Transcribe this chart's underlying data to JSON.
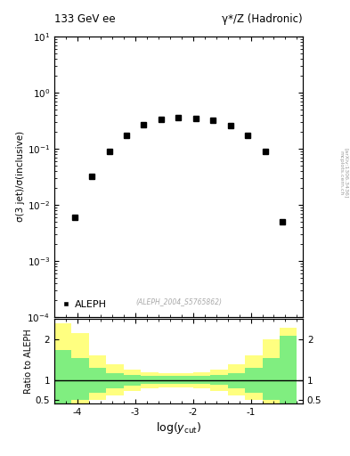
{
  "title_left": "133 GeV ee",
  "title_right": "γ*/Z (Hadronic)",
  "ylabel_main": "σ(3 jet)/σ(inclusive)",
  "ylabel_ratio": "Ratio to ALEPH",
  "xlabel": "log(y_{cut})",
  "watermark": "(ALEPH_2004_S5765862)",
  "arxiv_line1": "mcplots.cern.ch",
  "arxiv_line2": "[arXiv:1306.3436]",
  "legend_label": "ALEPH",
  "data_x": [
    -4.05,
    -3.75,
    -3.45,
    -3.15,
    -2.85,
    -2.55,
    -2.25,
    -1.95,
    -1.65,
    -1.35,
    -1.05,
    -0.75,
    -0.45
  ],
  "data_y": [
    0.006,
    0.032,
    0.09,
    0.17,
    0.27,
    0.33,
    0.36,
    0.35,
    0.32,
    0.26,
    0.17,
    0.09,
    0.005
  ],
  "xlim": [
    -4.4,
    -0.1
  ],
  "ylim_main": [
    0.0001,
    10
  ],
  "ylim_ratio": [
    0.42,
    2.5
  ],
  "ratio_yticks": [
    0.5,
    1,
    2
  ],
  "ratio_ytick_labels": [
    "0.5",
    "1",
    "2"
  ],
  "band_edges": [
    -4.4,
    -4.1,
    -3.8,
    -3.5,
    -3.2,
    -2.9,
    -2.6,
    -2.3,
    -2.0,
    -1.7,
    -1.4,
    -1.1,
    -0.8,
    -0.5,
    -0.2
  ],
  "green_upper": [
    1.75,
    1.55,
    1.3,
    1.18,
    1.12,
    1.1,
    1.1,
    1.1,
    1.1,
    1.12,
    1.18,
    1.3,
    1.55,
    2.1,
    2.3
  ],
  "green_lower": [
    0.38,
    0.52,
    0.68,
    0.8,
    0.87,
    0.9,
    0.9,
    0.9,
    0.9,
    0.88,
    0.8,
    0.68,
    0.52,
    0.42,
    0.38
  ],
  "yellow_upper": [
    2.4,
    2.15,
    1.6,
    1.38,
    1.25,
    1.2,
    1.18,
    1.18,
    1.2,
    1.25,
    1.38,
    1.6,
    2.0,
    2.3,
    2.4
  ],
  "yellow_lower": [
    0.38,
    0.42,
    0.5,
    0.62,
    0.73,
    0.8,
    0.82,
    0.82,
    0.8,
    0.73,
    0.62,
    0.5,
    0.42,
    0.38,
    0.36
  ],
  "green_color": "#80ee80",
  "yellow_color": "#ffff80",
  "marker_color": "black",
  "marker_size": 4.5
}
